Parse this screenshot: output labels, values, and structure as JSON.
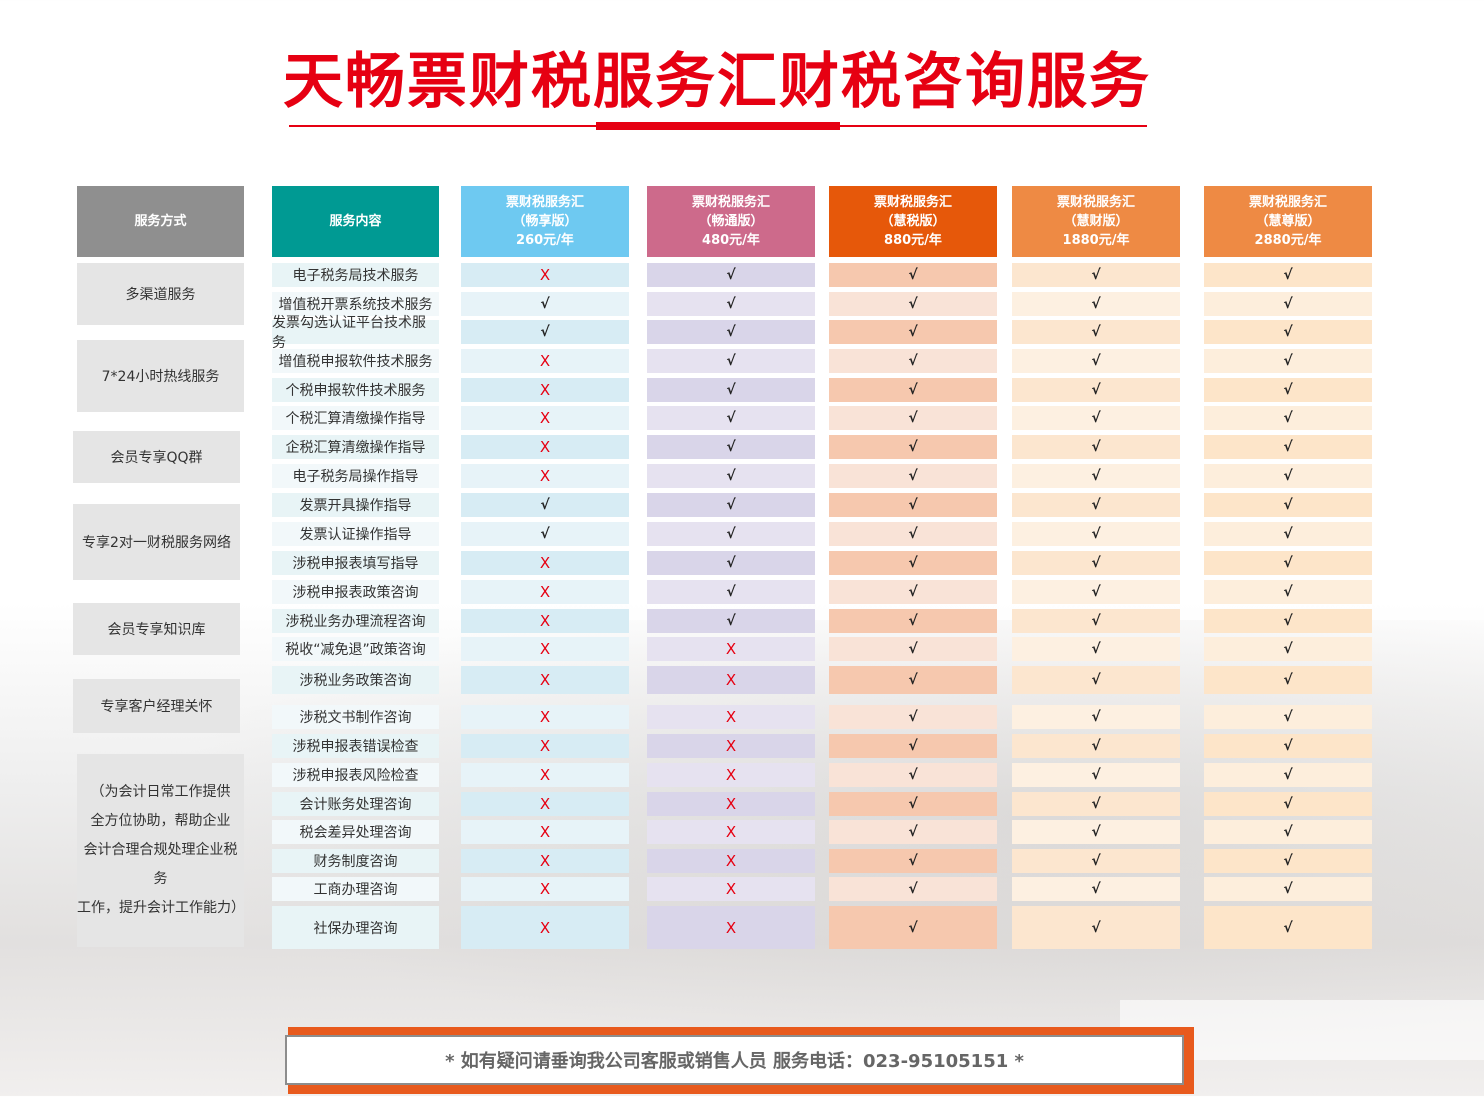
{
  "title": "天畅票财税服务汇财税咨询服务",
  "headers": {
    "service_mode": "服务方式",
    "service_content": "服务内容",
    "plans": [
      {
        "name": "票财税服务汇",
        "edition": "（畅享版）",
        "price": "260元/年",
        "color": "#6ec9f1"
      },
      {
        "name": "票财税服务汇",
        "edition": "（畅通版）",
        "price": "480元/年",
        "color": "#cd6a8b"
      },
      {
        "name": "票财税服务汇",
        "edition": "（慧税版）",
        "price": "880元/年",
        "color": "#e6580a"
      },
      {
        "name": "票财税服务汇",
        "edition": "（慧财版）",
        "price": "1880元/年",
        "color": "#ee8a44"
      },
      {
        "name": "票财税服务汇",
        "edition": "（慧尊版）",
        "price": "2880元/年",
        "color": "#ee8a44"
      }
    ]
  },
  "service_modes": [
    {
      "label": "多渠道服务"
    },
    {
      "label": "7*24小时热线服务"
    },
    {
      "label": "会员专享QQ群"
    },
    {
      "label": "专享2对一财税服务网络"
    },
    {
      "label": "会员专享知识库"
    },
    {
      "label": "专享客户经理关怀"
    },
    {
      "lines": [
        "（为会计日常工作提供",
        "全方位协助，帮助企业",
        "会计合理合规处理企业税务",
        "工作，提升会计工作能力）"
      ]
    }
  ],
  "rows": [
    {
      "name": "电子税务局技术服务",
      "marks": [
        "X",
        "√",
        "√",
        "√",
        "√"
      ]
    },
    {
      "name": "增值税开票系统技术服务",
      "marks": [
        "√",
        "√",
        "√",
        "√",
        "√"
      ]
    },
    {
      "name": "发票勾选认证平台技术服务",
      "marks": [
        "√",
        "√",
        "√",
        "√",
        "√"
      ]
    },
    {
      "name": "增值税申报软件技术服务",
      "marks": [
        "X",
        "√",
        "√",
        "√",
        "√"
      ]
    },
    {
      "name": "个税申报软件技术服务",
      "marks": [
        "X",
        "√",
        "√",
        "√",
        "√"
      ]
    },
    {
      "name": "个税汇算清缴操作指导",
      "marks": [
        "X",
        "√",
        "√",
        "√",
        "√"
      ]
    },
    {
      "name": "企税汇算清缴操作指导",
      "marks": [
        "X",
        "√",
        "√",
        "√",
        "√"
      ]
    },
    {
      "name": "电子税务局操作指导",
      "marks": [
        "X",
        "√",
        "√",
        "√",
        "√"
      ]
    },
    {
      "name": "发票开具操作指导",
      "marks": [
        "√",
        "√",
        "√",
        "√",
        "√"
      ]
    },
    {
      "name": "发票认证操作指导",
      "marks": [
        "√",
        "√",
        "√",
        "√",
        "√"
      ]
    },
    {
      "name": "涉税申报表填写指导",
      "marks": [
        "X",
        "√",
        "√",
        "√",
        "√"
      ]
    },
    {
      "name": "涉税申报表政策咨询",
      "marks": [
        "X",
        "√",
        "√",
        "√",
        "√"
      ]
    },
    {
      "name": "涉税业务办理流程咨询",
      "marks": [
        "X",
        "√",
        "√",
        "√",
        "√"
      ]
    },
    {
      "name": "税收“减免退”政策咨询",
      "marks": [
        "X",
        "X",
        "√",
        "√",
        "√"
      ]
    },
    {
      "name": "涉税业务政策咨询",
      "marks": [
        "X",
        "X",
        "√",
        "√",
        "√"
      ]
    },
    {
      "name": "涉税文书制作咨询",
      "marks": [
        "X",
        "X",
        "√",
        "√",
        "√"
      ]
    },
    {
      "name": "涉税申报表错误检查",
      "marks": [
        "X",
        "X",
        "√",
        "√",
        "√"
      ]
    },
    {
      "name": "涉税申报表风险检查",
      "marks": [
        "X",
        "X",
        "√",
        "√",
        "√"
      ]
    },
    {
      "name": "会计账务处理咨询",
      "marks": [
        "X",
        "X",
        "√",
        "√",
        "√"
      ]
    },
    {
      "name": "税会差异处理咨询",
      "marks": [
        "X",
        "X",
        "√",
        "√",
        "√"
      ]
    },
    {
      "name": "财务制度咨询",
      "marks": [
        "X",
        "X",
        "√",
        "√",
        "√"
      ]
    },
    {
      "name": "工商办理咨询",
      "marks": [
        "X",
        "X",
        "√",
        "√",
        "√"
      ]
    },
    {
      "name": "社保办理咨询",
      "marks": [
        "X",
        "X",
        "√",
        "√",
        "√"
      ]
    }
  ],
  "footer": "*  如有疑问请垂询我公司客服或销售人员 服务电话：023-95105151  *"
}
